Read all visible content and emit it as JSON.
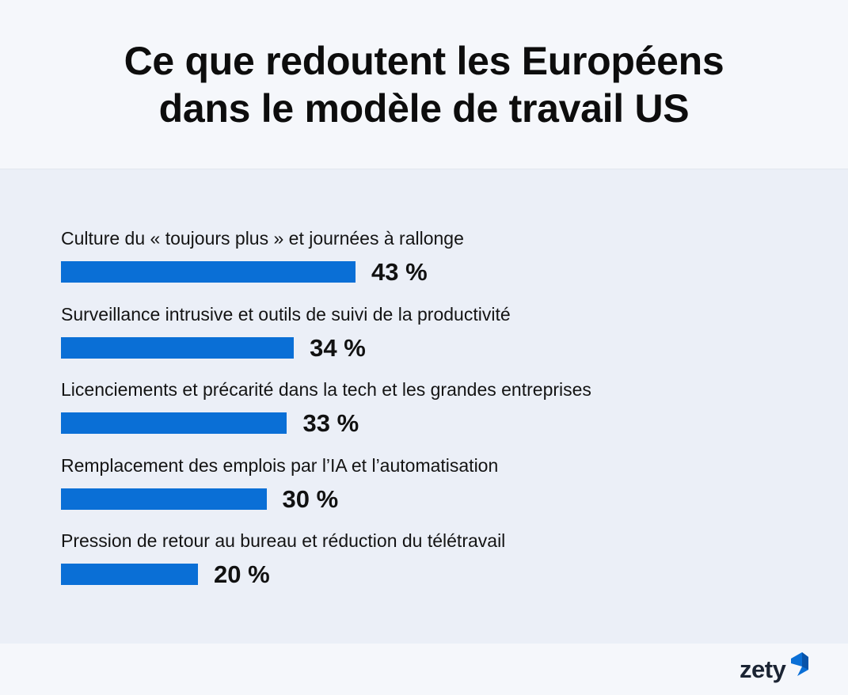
{
  "header": {
    "title_line1": "Ce que redoutent les Européens",
    "title_line2": "dans le modèle de travail US"
  },
  "chart_data": {
    "type": "bar",
    "orientation": "horizontal",
    "title": "Ce que redoutent les Européens dans le modèle de travail US",
    "categories": [
      "Culture du « toujours plus » et journées à rallonge",
      "Surveillance intrusive et outils de suivi de la productivité",
      "Licenciements et précarité dans la tech et les grandes entreprises",
      "Remplacement des emplois par l’IA et l’automatisation",
      "Pression de retour au bureau et réduction du télétravail"
    ],
    "values": [
      43,
      34,
      33,
      30,
      20
    ],
    "value_labels": [
      "43 %",
      "34 %",
      "33 %",
      "30 %",
      "20 %"
    ],
    "unit": "%",
    "xlim": [
      0,
      100
    ],
    "grid": false,
    "bar_color": "#0a6fd6"
  },
  "footer": {
    "logo_text": "zety",
    "logo_icon": "zety-logo-icon",
    "logo_color": "#0a6fd6"
  }
}
